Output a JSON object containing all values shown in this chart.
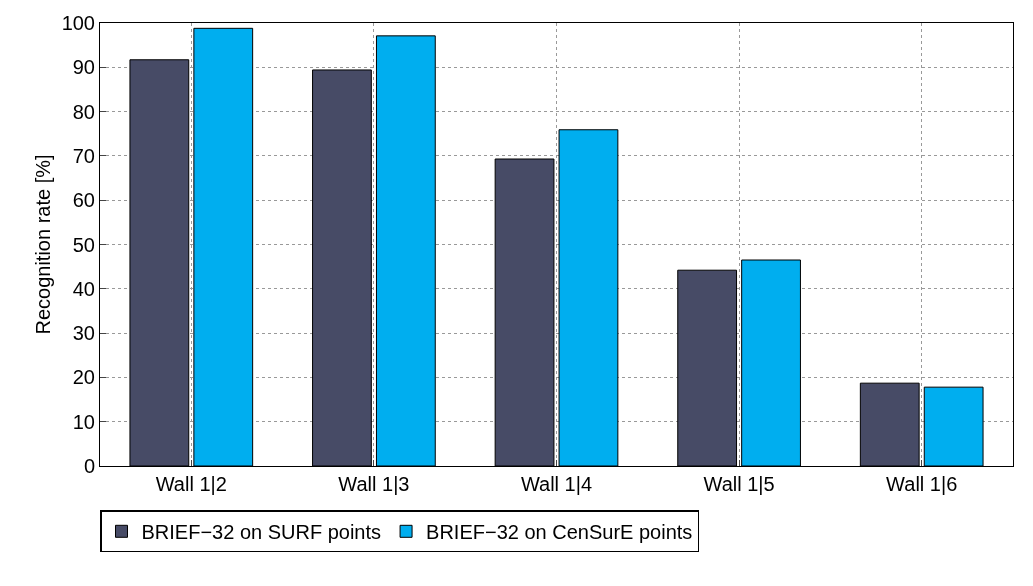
{
  "chart_data": {
    "type": "bar",
    "ylabel": "Recognition rate [%]",
    "categories": [
      "Wall 1|2",
      "Wall 1|3",
      "Wall 1|4",
      "Wall 1|5",
      "Wall 1|6"
    ],
    "series": [
      {
        "name": "BRIEF−32 on SURF points",
        "color": "#474b66",
        "values": [
          91.7,
          89.4,
          69.3,
          44.2,
          18.7
        ]
      },
      {
        "name": "BRIEF−32 on CenSurE points",
        "color": "#00aeef",
        "values": [
          98.8,
          97.1,
          75.9,
          46.5,
          17.8
        ]
      }
    ],
    "ylim": [
      0,
      100
    ],
    "yticks": [
      0,
      10,
      20,
      30,
      40,
      50,
      60,
      70,
      80,
      90,
      100
    ],
    "grid": true,
    "legend": "bottom left"
  }
}
